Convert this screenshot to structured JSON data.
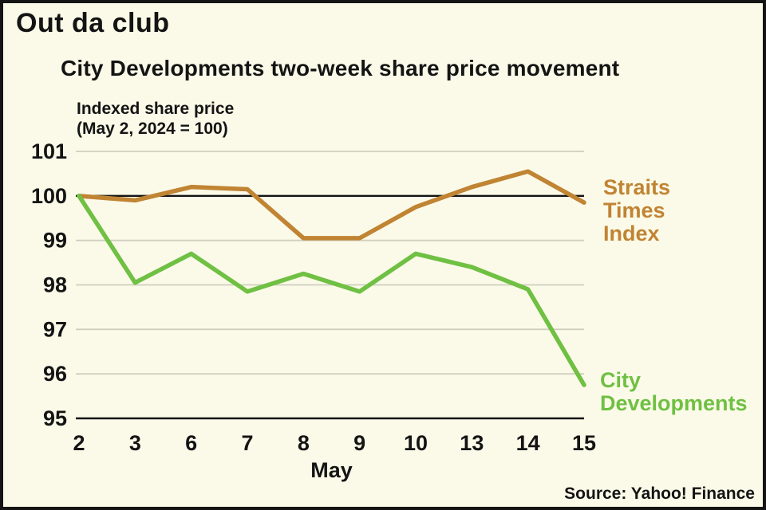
{
  "page": {
    "title": "Out da club",
    "source": "Source: Yahoo! Finance",
    "background": "#FBFAE8",
    "border_color": "#141414"
  },
  "chart_data": {
    "type": "line",
    "title": "City Developments two-week share price movement",
    "ylabel_lines": [
      "Indexed share price",
      "(May 2, 2024 = 100)"
    ],
    "xlabel": "May",
    "categories": [
      "2",
      "3",
      "6",
      "7",
      "8",
      "9",
      "10",
      "13",
      "14",
      "15"
    ],
    "ylim": [
      95,
      101
    ],
    "yticks": [
      95,
      96,
      97,
      98,
      99,
      100,
      101
    ],
    "baseline": 100,
    "grid": true,
    "legend_position": "right-of-line-ends",
    "gridline_color": "#cfcfc0",
    "axis_color": "#141414",
    "series": [
      {
        "name": "Straits Times Index",
        "label_lines": [
          "Straits",
          "Times",
          "Index"
        ],
        "color": "#C08433",
        "values": [
          100.0,
          99.9,
          100.2,
          100.15,
          99.05,
          99.05,
          99.75,
          100.2,
          100.55,
          99.85
        ]
      },
      {
        "name": "City Developments",
        "label_lines": [
          "City",
          "Developments"
        ],
        "color": "#6FC043",
        "values": [
          100.0,
          98.05,
          98.7,
          97.85,
          98.25,
          97.85,
          98.7,
          98.4,
          97.9,
          95.75
        ]
      }
    ]
  }
}
